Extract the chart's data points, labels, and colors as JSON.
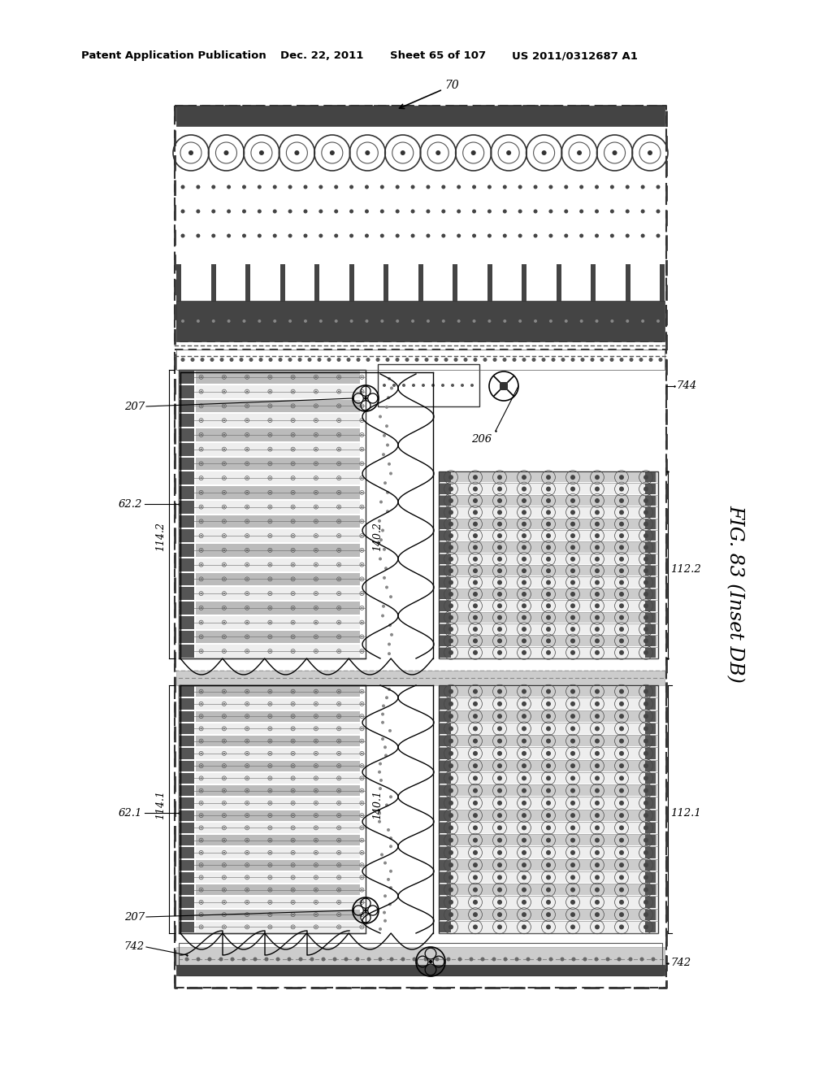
{
  "bg_color": "#ffffff",
  "header_text": "Patent Application Publication",
  "header_date": "Dec. 22, 2011",
  "header_sheet": "Sheet 65 of 107",
  "header_patent": "US 2011/0312687 A1",
  "fig_label": "FIG. 83 (Inset DB)",
  "label_70": "70",
  "label_744": "744",
  "label_206": "206",
  "label_62_2": "62.2",
  "label_207a": "207",
  "label_140_2": "140.2",
  "label_114_2": "114.2",
  "label_112_2": "112.2",
  "label_62_1": "62.1",
  "label_140_1": "140.1",
  "label_114_1": "114.1",
  "label_112_1": "112.1",
  "label_207b": "207",
  "label_742a": "742",
  "label_742b": "742"
}
